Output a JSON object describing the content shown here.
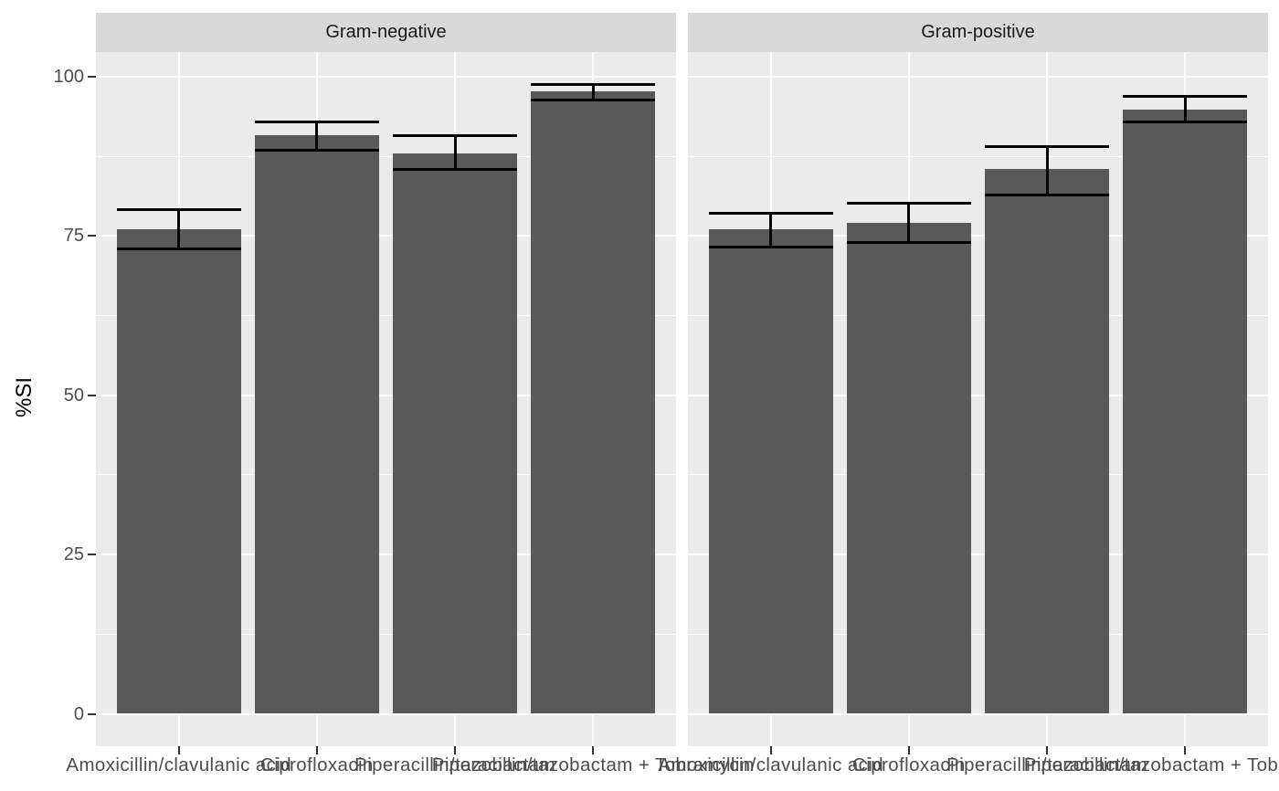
{
  "chart_data": {
    "type": "bar",
    "title": "",
    "ylabel": "%SI",
    "ylim": [
      0,
      100
    ],
    "yticks": [
      0,
      25,
      50,
      75,
      100
    ],
    "yminor": [
      12.5,
      37.5,
      62.5,
      87.5
    ],
    "grid": "white major and minor horizontal gridlines, white major vertical gridlines at category centers, grey panel background",
    "legend": "none",
    "error_bars": "black, cap width equal to bar width",
    "categories": [
      "Amoxicillin/clavulanic acid",
      "Ciprofloxacin",
      "Piperacillin/tazobactam",
      "Piperacillin/tazobactam + Tobramycin"
    ],
    "facets": [
      {
        "label": "Gram-negative",
        "values": [
          76.0,
          90.8,
          88.0,
          97.7
        ],
        "error_low": [
          73.0,
          88.5,
          85.5,
          96.4
        ],
        "error_high": [
          79.2,
          92.9,
          90.7,
          98.8
        ]
      },
      {
        "label": "Gram-positive",
        "values": [
          76.0,
          77.1,
          85.5,
          94.8
        ],
        "error_low": [
          73.3,
          74.0,
          81.4,
          92.9
        ],
        "error_high": [
          78.5,
          80.2,
          89.1,
          96.9
        ]
      }
    ]
  },
  "colors": {
    "bar_fill": "#595959",
    "panel_background": "#EBEBEB",
    "strip_background": "#D9D9D9",
    "gridline": "#FFFFFF",
    "error_bar": "#000000",
    "axis_text": "#4D4D4D",
    "strip_text": "#1A1A1A",
    "axis_title": "#000000",
    "tick_mark": "#333333",
    "figure_background": "#FFFFFF"
  }
}
